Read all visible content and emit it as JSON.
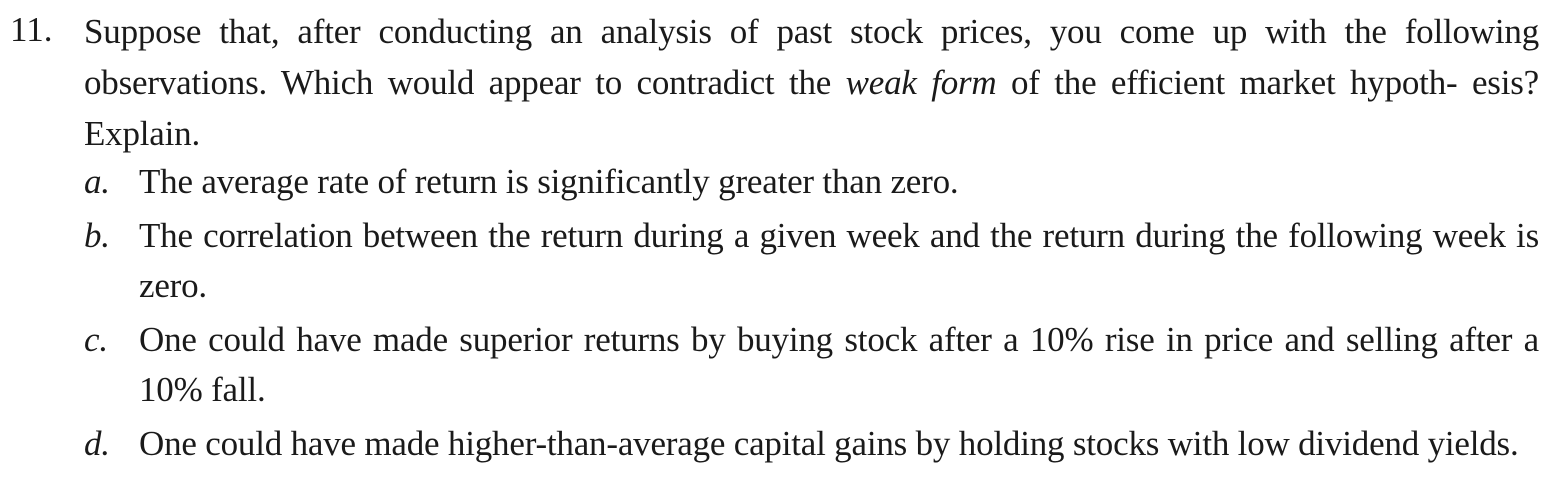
{
  "question": {
    "number": "11.",
    "stem_before": "Suppose that, after conducting an analysis of past stock prices, you come up with the following observations. Which would appear to contradict the ",
    "stem_emphasis": "weak form",
    "stem_after": " of the efficient market hypoth- esis? Explain."
  },
  "options": [
    {
      "letter": "a.",
      "text": "The average rate of return is significantly greater than zero."
    },
    {
      "letter": "b.",
      "text": "The correlation between the return during a given week and the return during the following week is zero."
    },
    {
      "letter": "c.",
      "text": "One could have made superior returns by buying stock after a 10% rise in price and selling after a 10% fall."
    },
    {
      "letter": "d.",
      "text": "One could have made higher-than-average capital gains by holding stocks with low dividend yields."
    }
  ]
}
